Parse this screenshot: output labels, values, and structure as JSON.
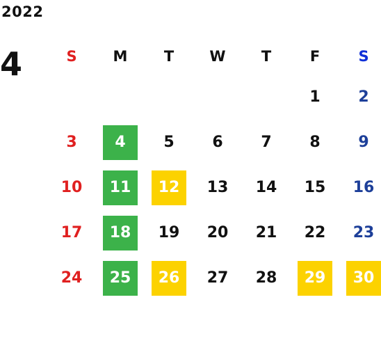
{
  "year": "2022",
  "month": "4",
  "weekdays": [
    "S",
    "M",
    "T",
    "W",
    "T",
    "F",
    "S"
  ],
  "weeks": [
    [
      {
        "day": ""
      },
      {
        "day": ""
      },
      {
        "day": ""
      },
      {
        "day": ""
      },
      {
        "day": ""
      },
      {
        "day": "1"
      },
      {
        "day": "2"
      }
    ],
    [
      {
        "day": "3"
      },
      {
        "day": "4",
        "highlight": "green"
      },
      {
        "day": "5"
      },
      {
        "day": "6"
      },
      {
        "day": "7"
      },
      {
        "day": "8"
      },
      {
        "day": "9"
      }
    ],
    [
      {
        "day": "10"
      },
      {
        "day": "11",
        "highlight": "green"
      },
      {
        "day": "12",
        "highlight": "yellow"
      },
      {
        "day": "13"
      },
      {
        "day": "14"
      },
      {
        "day": "15"
      },
      {
        "day": "16"
      }
    ],
    [
      {
        "day": "17"
      },
      {
        "day": "18",
        "highlight": "green"
      },
      {
        "day": "19"
      },
      {
        "day": "20"
      },
      {
        "day": "21"
      },
      {
        "day": "22"
      },
      {
        "day": "23"
      }
    ],
    [
      {
        "day": "24"
      },
      {
        "day": "25",
        "highlight": "green"
      },
      {
        "day": "26",
        "highlight": "yellow"
      },
      {
        "day": "27"
      },
      {
        "day": "28"
      },
      {
        "day": "29",
        "highlight": "yellow"
      },
      {
        "day": "30",
        "highlight": "yellow"
      }
    ]
  ],
  "colors": {
    "sunday": "#e02020",
    "saturday": "#1d3f99",
    "green_highlight": "#3cb24a",
    "yellow_highlight": "#fcd200"
  }
}
